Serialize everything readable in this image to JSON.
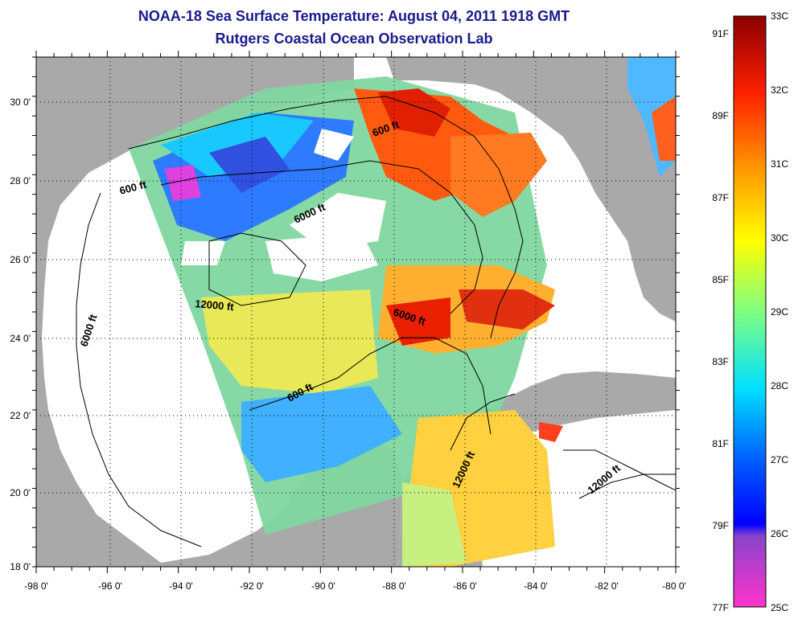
{
  "header": {
    "title": "NOAA-18 Sea Surface Temperature:  August 04, 2011 1918 GMT",
    "subtitle": "Rutgers Coastal Ocean Observation Lab"
  },
  "map": {
    "region": "Gulf of Mexico",
    "lon_range": [
      -98,
      -80
    ],
    "lat_range": [
      18,
      31
    ],
    "x_ticks": [
      "-98 0'",
      "-96 0'",
      "-94 0'",
      "-92 0'",
      "-90 0'",
      "-88 0'",
      "-86 0'",
      "-84 0'",
      "-82 0'",
      "-80 0'"
    ],
    "y_ticks": [
      "30 0'",
      "28 0'",
      "26 0'",
      "24 0'",
      "22 0'",
      "20 0'",
      "18 0'"
    ],
    "grid": "dotted",
    "contour_labels": [
      "600 ft",
      "600 ft",
      "6000 ft",
      "12000 ft",
      "6000 ft",
      "6000 ft",
      "600 ft",
      "12000 ft",
      "12000 ft"
    ]
  },
  "colorbar": {
    "celsius_labels": [
      "33C",
      "32C",
      "31C",
      "30C",
      "29C",
      "28C",
      "27C",
      "26C",
      "25C"
    ],
    "fahrenheit_labels": [
      "91F",
      "89F",
      "87F",
      "85F",
      "83F",
      "81F",
      "79F",
      "77F"
    ],
    "colors": [
      "#8b0000",
      "#ff2000",
      "#ff9000",
      "#ffff00",
      "#80ff80",
      "#00ffff",
      "#0040ff",
      "#0000ff",
      "#ff00ff"
    ]
  },
  "colors": {
    "land": "#a9a9a9",
    "no_data": "#ffffff",
    "title": "#1a1a8c"
  }
}
